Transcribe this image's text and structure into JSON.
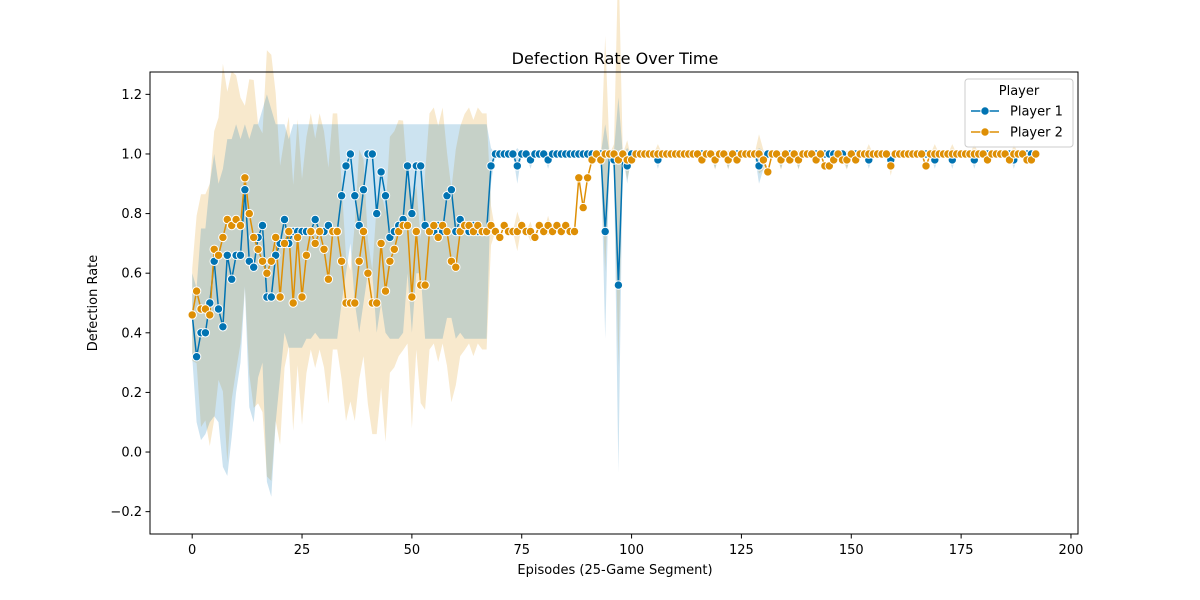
{
  "chart_data": {
    "type": "line",
    "title": "Defection Rate Over Time",
    "xlabel": "Episodes (25-Game Segment)",
    "ylabel": "Defection Rate",
    "xlim": [
      -9.6,
      201.6
    ],
    "ylim": [
      -0.275,
      1.275
    ],
    "xticks": [
      0,
      25,
      50,
      75,
      100,
      125,
      150,
      175,
      200
    ],
    "yticks": [
      -0.2,
      0.0,
      0.2,
      0.4,
      0.6,
      0.8,
      1.0,
      1.2
    ],
    "xtick_labels": [
      "0",
      "25",
      "50",
      "75",
      "100",
      "125",
      "150",
      "175",
      "200"
    ],
    "ytick_labels": [
      "−0.2",
      "0.0",
      "0.2",
      "0.4",
      "0.6",
      "0.8",
      "1.0",
      "1.2"
    ],
    "grid": false,
    "legend": {
      "title": "Player",
      "position": "top-right"
    },
    "series": [
      {
        "name": "Player 1",
        "color": "#0173b2",
        "values": [
          0.46,
          0.32,
          0.4,
          0.4,
          0.5,
          0.64,
          0.48,
          0.42,
          0.66,
          0.58,
          0.66,
          0.66,
          0.88,
          0.64,
          0.62,
          0.72,
          0.76,
          0.52,
          0.52,
          0.66,
          0.7,
          0.78,
          0.7,
          0.74,
          0.74,
          0.74,
          0.74,
          0.74,
          0.78,
          0.74,
          0.74,
          0.76,
          0.74,
          0.74,
          0.86,
          0.96,
          1.0,
          0.86,
          0.76,
          0.88,
          1.0,
          1.0,
          0.8,
          0.94,
          0.86,
          0.72,
          0.74,
          0.76,
          0.78,
          0.96,
          0.8,
          0.96,
          0.96,
          0.76,
          0.74,
          0.74,
          0.76,
          0.74,
          0.86,
          0.88,
          0.74,
          0.78,
          0.76,
          0.74,
          0.76,
          0.74,
          0.74,
          0.74,
          0.96,
          1.0,
          1.0,
          1.0,
          1.0,
          1.0,
          0.96,
          1.0,
          1.0,
          0.98,
          1.0,
          1.0,
          1.0,
          0.98,
          1.0,
          1.0,
          1.0,
          1.0,
          1.0,
          1.0,
          1.0,
          1.0,
          1.0,
          1.0,
          1.0,
          1.0,
          0.74,
          1.0,
          0.98,
          0.56,
          1.0,
          0.96,
          1.0,
          1.0,
          1.0,
          1.0,
          1.0,
          1.0,
          0.98,
          1.0,
          1.0,
          1.0,
          1.0,
          1.0,
          1.0,
          1.0,
          1.0,
          1.0,
          1.0,
          1.0,
          1.0,
          0.98,
          1.0,
          1.0,
          0.98,
          1.0,
          1.0,
          1.0,
          1.0,
          1.0,
          1.0,
          0.96,
          0.98,
          1.0,
          1.0,
          1.0,
          0.98,
          1.0,
          1.0,
          1.0,
          0.98,
          1.0,
          1.0,
          1.0,
          1.0,
          1.0,
          1.0,
          1.0,
          1.0,
          1.0,
          1.0,
          0.98,
          1.0,
          1.0,
          1.0,
          1.0,
          0.98,
          1.0,
          1.0,
          1.0,
          1.0,
          0.98,
          1.0,
          1.0,
          1.0,
          1.0,
          1.0,
          1.0,
          1.0,
          1.0,
          1.0,
          0.98,
          1.0,
          1.0,
          1.0,
          0.98,
          1.0,
          1.0,
          1.0,
          1.0,
          0.98,
          1.0,
          1.0,
          1.0,
          1.0,
          1.0,
          1.0,
          1.0,
          1.0,
          0.98,
          1.0,
          1.0,
          1.0,
          1.0,
          1.0
        ],
        "ci_lower": [
          0.32,
          0.1,
          0.04,
          0.06,
          0.1,
          0.12,
          0.1,
          -0.05,
          -0.08,
          0.05,
          0.2,
          0.3,
          0.55,
          0.15,
          0.1,
          0.25,
          0.3,
          -0.1,
          -0.15,
          0.1,
          0.25,
          0.4,
          0.35,
          0.35,
          0.35,
          0.35,
          0.38,
          0.38,
          0.4,
          0.38,
          0.38,
          0.38,
          0.38,
          0.38,
          0.5,
          0.6,
          0.7,
          0.5,
          0.4,
          0.5,
          0.6,
          0.6,
          0.4,
          0.5,
          0.4,
          0.38,
          0.38,
          0.38,
          0.4,
          0.6,
          0.4,
          0.6,
          0.6,
          0.38,
          0.38,
          0.38,
          0.38,
          0.38,
          0.45,
          0.45,
          0.38,
          0.4,
          0.38,
          0.38,
          0.38,
          0.38,
          0.38,
          0.38,
          0.9,
          1.0,
          1.0,
          1.0,
          1.0,
          1.0,
          0.9,
          1.0,
          1.0,
          0.95,
          1.0,
          1.0,
          1.0,
          0.95,
          1.0,
          1.0,
          1.0,
          1.0,
          1.0,
          1.0,
          1.0,
          1.0,
          1.0,
          1.0,
          1.0,
          1.0,
          0.38,
          1.0,
          0.95,
          -0.07,
          1.0,
          0.9,
          1.0,
          1.0,
          1.0,
          1.0,
          1.0,
          1.0,
          0.95,
          1.0,
          1.0,
          1.0,
          1.0,
          1.0,
          1.0,
          1.0,
          1.0,
          1.0,
          1.0,
          1.0,
          1.0,
          0.95,
          1.0,
          1.0,
          0.95,
          1.0,
          1.0,
          1.0,
          1.0,
          1.0,
          1.0,
          0.9,
          0.95,
          1.0,
          1.0,
          1.0,
          0.95,
          1.0,
          1.0,
          1.0,
          0.95,
          1.0,
          1.0,
          1.0,
          1.0,
          1.0,
          1.0,
          1.0,
          1.0,
          1.0,
          1.0,
          0.95,
          1.0,
          1.0,
          1.0,
          1.0,
          0.95,
          1.0,
          1.0,
          1.0,
          1.0,
          0.95,
          1.0,
          1.0,
          1.0,
          1.0,
          1.0,
          1.0,
          1.0,
          1.0,
          1.0,
          0.95,
          1.0,
          1.0,
          1.0,
          0.95,
          1.0,
          1.0,
          1.0,
          1.0,
          0.95,
          1.0,
          1.0,
          1.0,
          1.0,
          1.0,
          1.0,
          1.0,
          1.0,
          0.95,
          1.0,
          1.0,
          1.0,
          1.0,
          1.0
        ],
        "ci_upper": [
          0.6,
          0.55,
          0.75,
          0.75,
          0.9,
          1.0,
          0.9,
          0.95,
          1.05,
          1.05,
          1.1,
          1.05,
          1.1,
          1.05,
          1.1,
          1.1,
          1.15,
          1.2,
          1.15,
          1.1,
          1.1,
          1.1,
          1.05,
          1.1,
          1.1,
          1.1,
          1.1,
          1.1,
          1.1,
          1.1,
          1.1,
          1.1,
          1.1,
          1.1,
          1.1,
          1.1,
          1.1,
          1.1,
          1.1,
          1.1,
          1.1,
          1.1,
          1.1,
          1.1,
          1.1,
          1.1,
          1.1,
          1.1,
          1.1,
          1.1,
          1.1,
          1.1,
          1.1,
          1.1,
          1.1,
          1.1,
          1.1,
          1.1,
          1.1,
          1.1,
          1.1,
          1.1,
          1.1,
          1.1,
          1.1,
          1.1,
          1.1,
          1.1,
          1.02,
          1.0,
          1.0,
          1.0,
          1.0,
          1.0,
          1.02,
          1.0,
          1.0,
          1.01,
          1.0,
          1.0,
          1.0,
          1.01,
          1.0,
          1.0,
          1.0,
          1.0,
          1.0,
          1.0,
          1.0,
          1.0,
          1.0,
          1.0,
          1.0,
          1.0,
          1.1,
          1.0,
          1.01,
          1.19,
          1.0,
          1.02,
          1.0,
          1.0,
          1.0,
          1.0,
          1.0,
          1.0,
          1.01,
          1.0,
          1.0,
          1.0,
          1.0,
          1.0,
          1.0,
          1.0,
          1.0,
          1.0,
          1.0,
          1.0,
          1.0,
          1.01,
          1.0,
          1.0,
          1.01,
          1.0,
          1.0,
          1.0,
          1.0,
          1.0,
          1.0,
          1.02,
          1.01,
          1.0,
          1.0,
          1.0,
          1.01,
          1.0,
          1.0,
          1.0,
          1.01,
          1.0,
          1.0,
          1.0,
          1.0,
          1.0,
          1.0,
          1.0,
          1.0,
          1.0,
          1.0,
          1.01,
          1.0,
          1.0,
          1.0,
          1.0,
          1.01,
          1.0,
          1.0,
          1.0,
          1.0,
          1.01,
          1.0,
          1.0,
          1.0,
          1.0,
          1.0,
          1.0,
          1.0,
          1.0,
          1.0,
          1.01,
          1.0,
          1.0,
          1.0,
          1.01,
          1.0,
          1.0,
          1.0,
          1.0,
          1.01,
          1.0,
          1.0,
          1.0,
          1.0,
          1.0,
          1.0,
          1.0,
          1.0,
          1.01,
          1.0,
          1.0,
          1.0,
          1.0,
          1.0
        ]
      },
      {
        "name": "Player 2",
        "color": "#de8f05",
        "values": [
          0.46,
          0.54,
          0.48,
          0.48,
          0.46,
          0.68,
          0.66,
          0.72,
          0.78,
          0.76,
          0.78,
          0.76,
          0.92,
          0.8,
          0.72,
          0.68,
          0.64,
          0.6,
          0.64,
          0.72,
          0.52,
          0.7,
          0.74,
          0.5,
          0.72,
          0.52,
          0.66,
          0.74,
          0.7,
          0.74,
          0.68,
          0.58,
          0.74,
          0.74,
          0.64,
          0.5,
          0.5,
          0.5,
          0.64,
          0.74,
          0.6,
          0.5,
          0.5,
          0.7,
          0.54,
          0.64,
          0.68,
          0.74,
          0.76,
          0.76,
          0.52,
          0.74,
          0.56,
          0.56,
          0.74,
          0.76,
          0.72,
          0.76,
          0.74,
          0.64,
          0.62,
          0.74,
          0.76,
          0.76,
          0.74,
          0.76,
          0.74,
          0.74,
          0.76,
          0.74,
          0.72,
          0.76,
          0.74,
          0.74,
          0.74,
          0.76,
          0.74,
          0.74,
          0.72,
          0.76,
          0.74,
          0.76,
          0.74,
          0.76,
          0.74,
          0.76,
          0.74,
          0.74,
          0.92,
          0.82,
          0.92,
          0.98,
          1.0,
          0.98,
          1.0,
          1.0,
          1.0,
          0.98,
          1.0,
          0.98,
          0.98,
          1.0,
          1.0,
          1.0,
          1.0,
          1.0,
          1.0,
          1.0,
          1.0,
          1.0,
          1.0,
          1.0,
          1.0,
          1.0,
          1.0,
          1.0,
          0.98,
          1.0,
          1.0,
          0.98,
          1.0,
          1.0,
          0.98,
          1.0,
          0.98,
          1.0,
          1.0,
          1.0,
          1.0,
          1.0,
          0.98,
          0.94,
          1.0,
          1.0,
          0.98,
          1.0,
          0.98,
          1.0,
          0.98,
          1.0,
          1.0,
          1.0,
          0.98,
          1.0,
          0.96,
          0.96,
          0.98,
          1.0,
          0.98,
          0.98,
          1.0,
          0.98,
          1.0,
          1.0,
          1.0,
          1.0,
          1.0,
          1.0,
          1.0,
          0.96,
          1.0,
          1.0,
          1.0,
          1.0,
          1.0,
          1.0,
          1.0,
          0.96,
          1.0,
          1.0,
          1.0,
          1.0,
          1.0,
          1.0,
          1.0,
          1.0,
          1.0,
          1.0,
          1.0,
          1.0,
          1.0,
          0.98,
          1.0,
          1.0,
          1.0,
          1.0,
          0.98,
          1.0,
          1.0,
          1.0,
          0.98,
          0.98,
          1.0
        ]
      }
    ]
  }
}
